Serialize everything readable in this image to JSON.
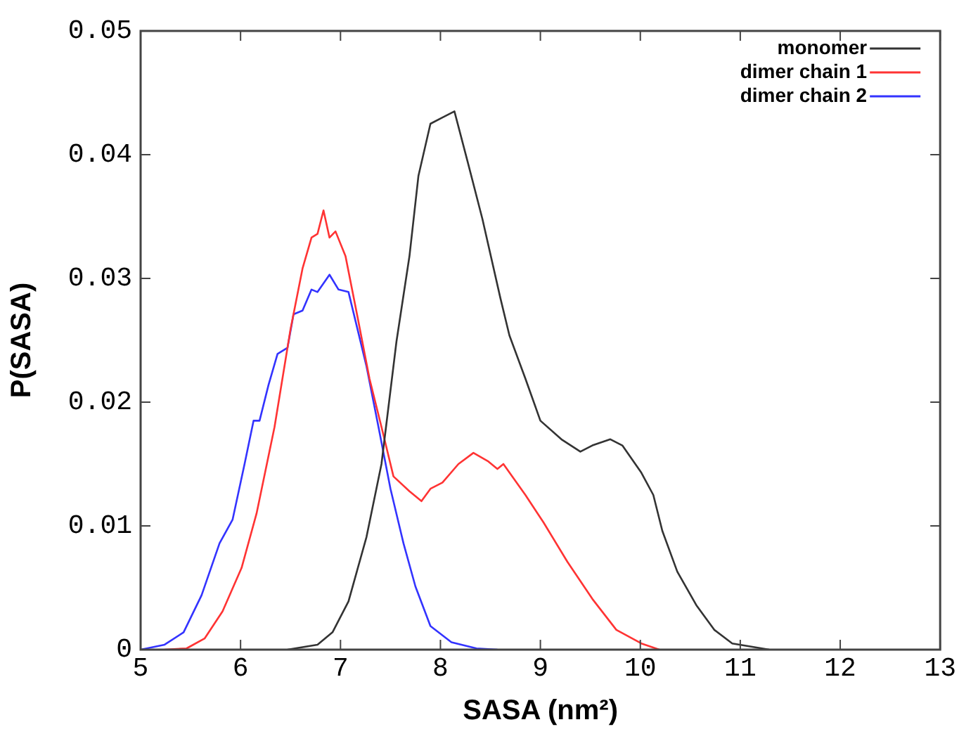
{
  "chart_data": {
    "type": "line",
    "xlabel": "SASA (nm²)",
    "ylabel": "P(SASA)",
    "xlim": [
      5,
      13
    ],
    "xticks": [
      5,
      6,
      7,
      8,
      9,
      10,
      11,
      12,
      13
    ],
    "ylim": [
      0,
      0.05
    ],
    "yticks": [
      0,
      0.01,
      0.02,
      0.03,
      0.04,
      0.05
    ],
    "grid": false,
    "legend": "top right",
    "marker": "none",
    "line_style": "solid",
    "series": [
      {
        "name": "monomer",
        "color": "#333333",
        "x": [
          6.47,
          6.77,
          6.92,
          7.08,
          7.26,
          7.41,
          7.56,
          7.69,
          7.78,
          7.9,
          8.02,
          8.14,
          8.27,
          8.42,
          8.6,
          8.69,
          8.85,
          9.0,
          9.21,
          9.4,
          9.52,
          9.7,
          9.82,
          10.01,
          10.13,
          10.22,
          10.37,
          10.56,
          10.74,
          10.92,
          11.29
        ],
        "values": [
          0,
          0.0004,
          0.0014,
          0.0039,
          0.0091,
          0.015,
          0.0249,
          0.0318,
          0.0383,
          0.0425,
          0.043,
          0.0435,
          0.0395,
          0.0348,
          0.0284,
          0.0254,
          0.0219,
          0.0185,
          0.017,
          0.016,
          0.0165,
          0.017,
          0.0165,
          0.0143,
          0.0125,
          0.0096,
          0.0063,
          0.0036,
          0.0016,
          0.0005,
          0
        ]
      },
      {
        "name": "dimer chain 1",
        "color": "#ff3333",
        "x": [
          5.24,
          5.46,
          5.64,
          5.82,
          6.01,
          6.16,
          6.34,
          6.5,
          6.62,
          6.71,
          6.77,
          6.83,
          6.89,
          6.95,
          7.05,
          7.17,
          7.29,
          7.41,
          7.53,
          7.69,
          7.81,
          7.9,
          8.02,
          8.18,
          8.33,
          8.48,
          8.57,
          8.63,
          8.85,
          9.03,
          9.27,
          9.52,
          9.76,
          10.01,
          10.19
        ],
        "values": [
          0,
          0.0001,
          0.0009,
          0.0031,
          0.0066,
          0.011,
          0.018,
          0.0259,
          0.0308,
          0.0333,
          0.0336,
          0.0355,
          0.0333,
          0.0338,
          0.0318,
          0.0269,
          0.0219,
          0.018,
          0.014,
          0.0128,
          0.012,
          0.013,
          0.0135,
          0.015,
          0.0159,
          0.0152,
          0.0146,
          0.015,
          0.0125,
          0.0103,
          0.0071,
          0.0041,
          0.0016,
          0.0005,
          0
        ]
      },
      {
        "name": "dimer chain 2",
        "color": "#3333ff",
        "x": [
          5.0,
          5.24,
          5.43,
          5.61,
          5.79,
          5.92,
          6.04,
          6.13,
          6.19,
          6.28,
          6.37,
          6.47,
          6.53,
          6.62,
          6.71,
          6.77,
          6.83,
          6.89,
          6.98,
          7.08,
          7.17,
          7.26,
          7.38,
          7.5,
          7.63,
          7.75,
          7.9,
          8.11,
          8.36,
          8.57
        ],
        "values": [
          0,
          0.0004,
          0.0014,
          0.0044,
          0.0086,
          0.0105,
          0.015,
          0.0185,
          0.0185,
          0.0214,
          0.0239,
          0.0244,
          0.0271,
          0.0274,
          0.0291,
          0.0289,
          0.0296,
          0.0303,
          0.0291,
          0.0289,
          0.0259,
          0.0229,
          0.018,
          0.013,
          0.0086,
          0.0051,
          0.0019,
          0.0006,
          0.0001,
          0
        ]
      }
    ]
  }
}
